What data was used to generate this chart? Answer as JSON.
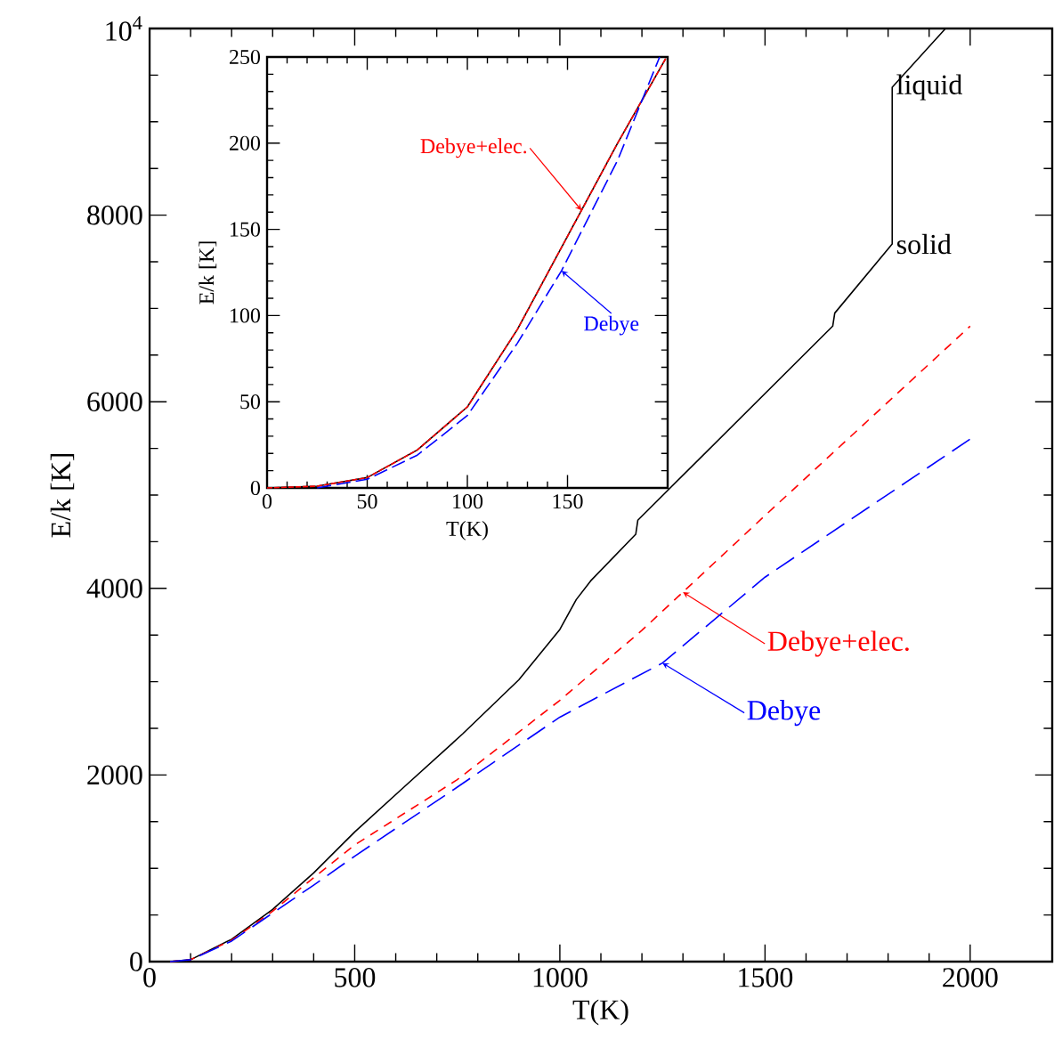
{
  "chart_data": [
    {
      "type": "line",
      "xlabel": "T(K)",
      "ylabel": "E/k [K]",
      "xlim": [
        0,
        2200
      ],
      "ylim": [
        0,
        10000
      ],
      "xticks": [
        0,
        500,
        1000,
        1500,
        2000
      ],
      "yticks": [
        0,
        2000,
        4000,
        6000,
        8000,
        {
          "value": 10000,
          "label": "10$^{4}$"
        }
      ],
      "x": [
        0,
        50,
        100,
        200,
        300,
        400,
        500,
        620,
        763,
        900,
        1000,
        1040,
        1075,
        1185,
        1190,
        1665,
        1670,
        1810,
        1810,
        1940
      ],
      "series": [
        {
          "color": "#000000",
          "line_style": "solid",
          "values": [
            0,
            0,
            20,
            240,
            560,
            950,
            1390,
            1870,
            2440,
            3020,
            3560,
            3880,
            4080,
            4580,
            4730,
            6810,
            6950,
            7690,
            9370,
            10000
          ]
        },
        {
          "name": "Debye+elec.",
          "color": "#ff0000",
          "line_style": "dashed",
          "x": [
            50,
            100,
            200,
            300,
            400,
            500,
            750,
            1000,
            1200,
            1300,
            1500,
            2000
          ],
          "values": [
            0,
            20,
            230,
            540,
            900,
            1250,
            1950,
            2800,
            3550,
            3960,
            4780,
            6810
          ]
        },
        {
          "name": "Debye",
          "color": "#0000ff",
          "line_style": "dashed",
          "x": [
            50,
            100,
            200,
            300,
            400,
            500,
            750,
            1000,
            1250,
            1500,
            2000
          ],
          "values": [
            0,
            20,
            220,
            520,
            820,
            1130,
            1870,
            2620,
            3200,
            4120,
            5600
          ]
        }
      ],
      "annotations": [
        {
          "text": "liquid",
          "x": 1810,
          "y": 9370
        },
        {
          "text": "solid",
          "x": 1810,
          "y": 7690
        }
      ]
    },
    {
      "type": "line",
      "xlabel": "T(K)",
      "ylabel": "E/k [K]",
      "xlim": [
        0,
        200
      ],
      "ylim": [
        0,
        250
      ],
      "xticks": [
        0,
        50,
        100,
        150
      ],
      "yticks": [
        0,
        50,
        100,
        150,
        200,
        250
      ],
      "x": [
        0,
        25,
        50,
        75,
        100,
        125,
        150,
        175,
        199
      ],
      "series": [
        {
          "color": "#000000",
          "line_style": "solid",
          "values": [
            0,
            1,
            6,
            22,
            47,
            92,
            146,
            200,
            249
          ]
        },
        {
          "name": "Debye+elec.",
          "color": "#ff0000",
          "line_style": "dashed",
          "x": [
            0,
            25,
            50,
            75,
            100,
            125,
            150,
            157,
            175,
            199
          ],
          "values": [
            0,
            1,
            6,
            22,
            47,
            92,
            146,
            161,
            200,
            249
          ]
        },
        {
          "name": "Debye",
          "color": "#0000ff",
          "line_style": "dashed",
          "x": [
            25,
            50,
            75,
            100,
            125,
            147,
            175,
            196
          ],
          "values": [
            0,
            5,
            19,
            42,
            84,
            126,
            190,
            250
          ]
        }
      ]
    }
  ]
}
